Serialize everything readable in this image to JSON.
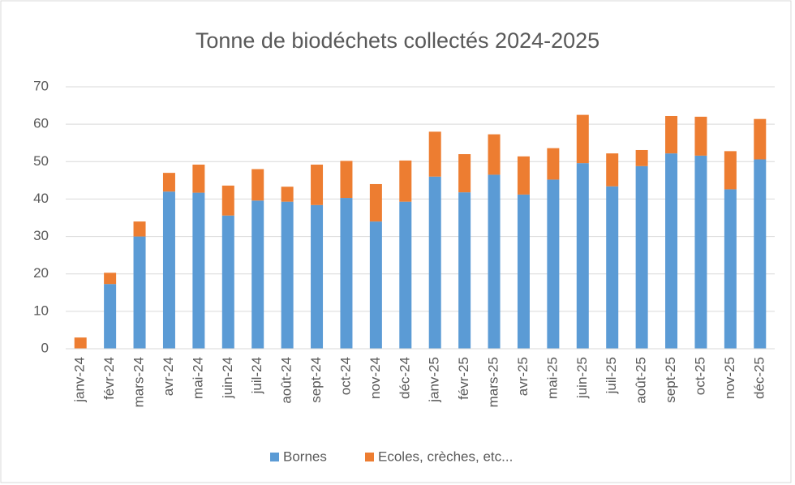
{
  "chart_data": {
    "type": "stacked_bar",
    "title": "Tonne de biodéchets collectés 2024-2025",
    "categories": [
      "janv-24",
      "févr-24",
      "mars-24",
      "avr-24",
      "mai-24",
      "juin-24",
      "juil-24",
      "août-24",
      "sept-24",
      "oct-24",
      "nov-24",
      "déc-24",
      "janv-25",
      "févr-25",
      "mars-25",
      "avr-25",
      "mai-25",
      "juin-25",
      "juil-25",
      "août-25",
      "sept-25",
      "oct-25",
      "nov-25",
      "déc-25"
    ],
    "series": [
      {
        "name": "Bornes",
        "color": "#5b9bd5",
        "values": [
          0,
          17.3,
          30,
          42,
          41.7,
          35.6,
          39.6,
          39.3,
          38.4,
          40.3,
          34,
          39.3,
          46,
          41.8,
          46.5,
          41.2,
          45.2,
          49.6,
          43.4,
          48.8,
          52.2,
          51.6,
          42.6,
          50.6
        ]
      },
      {
        "name": "Ecoles, crèches, etc...",
        "color": "#ed7d31",
        "values": [
          3,
          3,
          4,
          5,
          7.5,
          8,
          8.4,
          4,
          10.8,
          9.9,
          10,
          11,
          12,
          10.2,
          10.8,
          10.2,
          8.4,
          12.9,
          8.8,
          4.3,
          10,
          10.4,
          10.2,
          10.8
        ]
      }
    ],
    "ylim": [
      0,
      70
    ],
    "yticks": [
      0,
      10,
      20,
      30,
      40,
      50,
      60,
      70
    ],
    "grid": true,
    "legend": "bottom"
  }
}
